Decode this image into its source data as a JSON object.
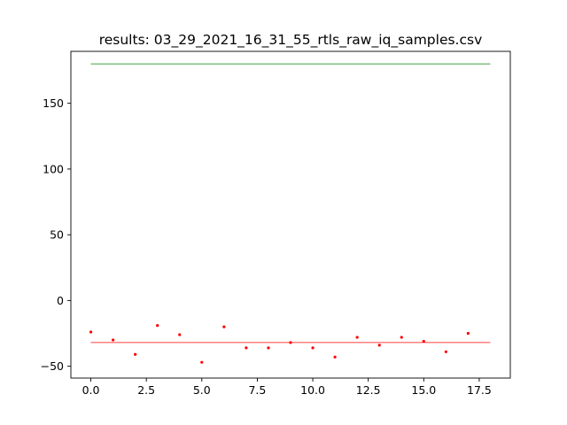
{
  "chart_data": {
    "type": "scatter",
    "title": "results: 03_29_2021_16_31_55_rtls_raw_iq_samples.csv",
    "xlabel": "",
    "ylabel": "",
    "xlim": [
      -0.9,
      18.9
    ],
    "ylim": [
      -59,
      189.5
    ],
    "xticks": [
      0,
      2.5,
      5,
      7.5,
      10,
      12.5,
      15,
      17.5
    ],
    "xtick_labels": [
      "0.0",
      "2.5",
      "5.0",
      "7.5",
      "10.0",
      "12.5",
      "15.0",
      "17.5"
    ],
    "yticks": [
      -50,
      0,
      50,
      100,
      150
    ],
    "ytick_labels": [
      "−50",
      "0",
      "50",
      "100",
      "150"
    ],
    "grid": false,
    "series": [
      {
        "kind": "scatter",
        "color": "#ff0000",
        "x": [
          0,
          1,
          2,
          3,
          4,
          5,
          6,
          7,
          8,
          9,
          10,
          11,
          12,
          13,
          14,
          15,
          16,
          17
        ],
        "y": [
          -24,
          -30,
          -41,
          -19,
          -26,
          -47,
          -20,
          -36,
          -36,
          -32,
          -36,
          -43,
          -28,
          -34,
          -28,
          -31,
          -39,
          -25
        ]
      },
      {
        "kind": "line",
        "color": "#ff0000",
        "x": [
          0,
          18
        ],
        "y": [
          -32,
          -32
        ]
      },
      {
        "kind": "line",
        "color": "#008000",
        "x": [
          0,
          18
        ],
        "y": [
          180,
          180
        ]
      }
    ]
  }
}
